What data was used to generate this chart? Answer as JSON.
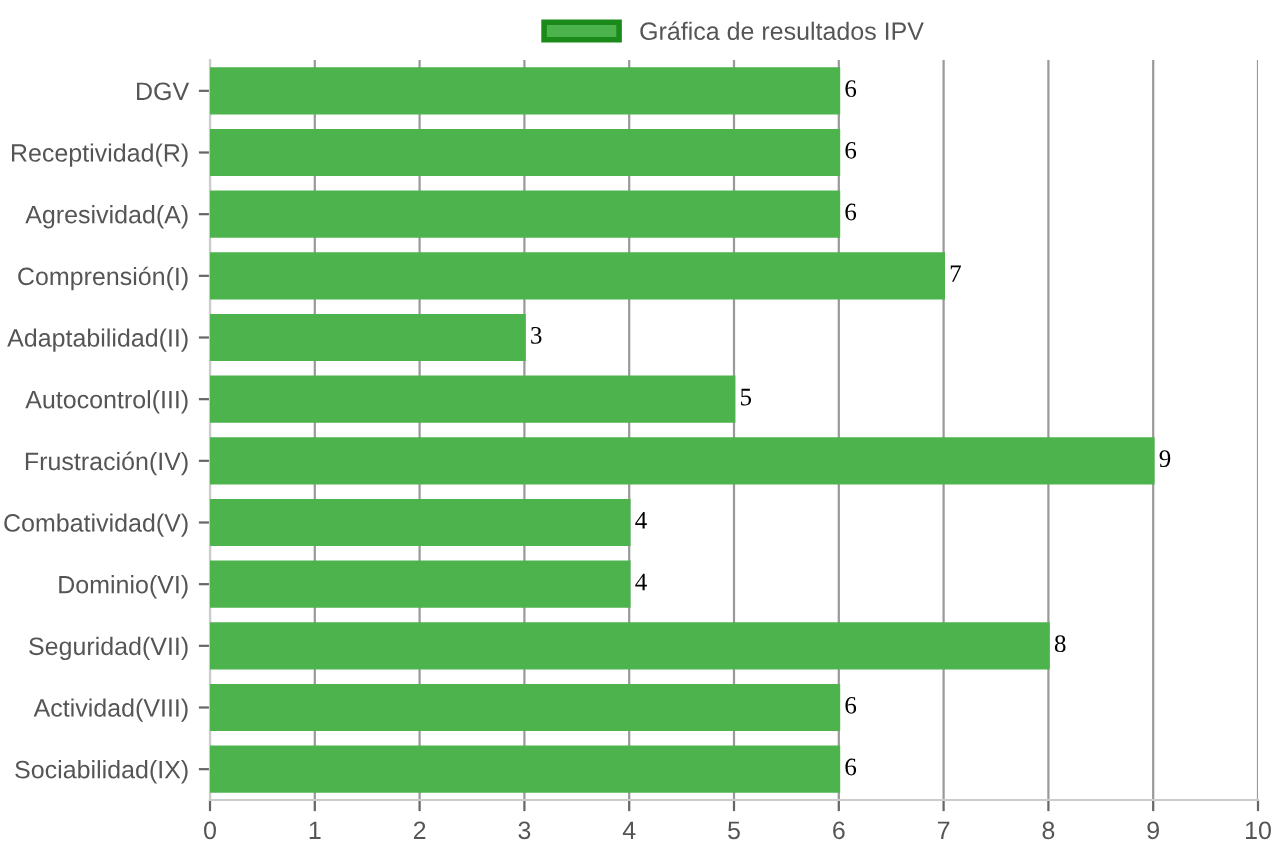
{
  "chart_data": {
    "type": "bar",
    "orientation": "horizontal",
    "categories": [
      "DGV",
      "Receptividad(R)",
      "Agresividad(A)",
      "Comprensión(I)",
      "Adaptabilidad(II)",
      "Autocontrol(III)",
      "Frustración(IV)",
      "Combatividad(V)",
      "Dominio(VI)",
      "Seguridad(VII)",
      "Actividad(VIII)",
      "Sociabilidad(IX)"
    ],
    "series": [
      {
        "name": "Gráfica de resultados IPV",
        "color": "#4db34d",
        "values": [
          6,
          6,
          6,
          7,
          3,
          5,
          9,
          4,
          4,
          8,
          6,
          6
        ]
      }
    ],
    "xlim": [
      0,
      10
    ],
    "xticks": [
      0,
      1,
      2,
      3,
      4,
      5,
      6,
      7,
      8,
      9,
      10
    ],
    "grid": "x",
    "legend": "top",
    "data_labels": true
  }
}
